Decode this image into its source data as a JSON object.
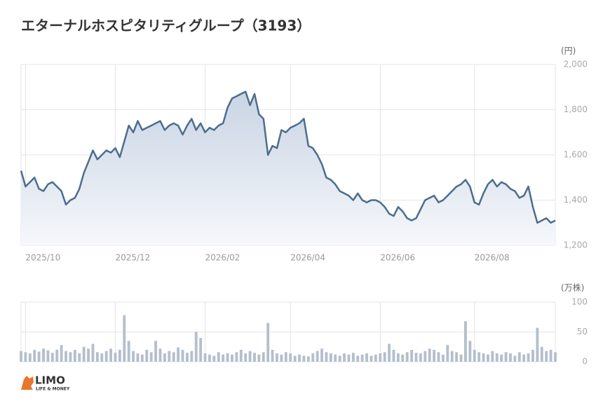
{
  "chart_data": [
    {
      "type": "line",
      "title": "エターナルホスピタリティグループ（3193）",
      "unit": "(円)",
      "color": "#4b6d8f",
      "area": true,
      "categories": [
        null,
        "2025/10",
        null,
        null,
        null,
        null,
        null,
        null,
        null,
        null,
        null,
        null,
        null,
        null,
        null,
        null,
        null,
        null,
        null,
        null,
        null,
        "2025/12",
        null,
        null,
        null,
        null,
        null,
        null,
        null,
        null,
        null,
        null,
        null,
        null,
        null,
        null,
        null,
        null,
        null,
        null,
        null,
        "2026/02",
        null,
        null,
        null,
        null,
        null,
        null,
        null,
        null,
        null,
        null,
        null,
        null,
        null,
        null,
        null,
        null,
        null,
        null,
        "2026/04",
        null,
        null,
        null,
        null,
        null,
        null,
        null,
        null,
        null,
        null,
        null,
        null,
        null,
        null,
        null,
        null,
        null,
        null,
        null,
        "2026/06",
        null,
        null,
        null,
        null,
        null,
        null,
        null,
        null,
        null,
        null,
        null,
        null,
        null,
        null,
        null,
        null,
        null,
        null,
        null,
        null,
        "2026/08",
        null,
        null,
        null,
        null,
        null,
        null,
        null,
        null,
        null,
        null,
        null,
        null,
        null,
        null,
        null,
        null,
        null,
        null
      ],
      "values": [
        1530,
        1460,
        1480,
        1500,
        1450,
        1440,
        1470,
        1480,
        1460,
        1440,
        1380,
        1400,
        1410,
        1450,
        1520,
        1570,
        1620,
        1580,
        1600,
        1620,
        1610,
        1630,
        1590,
        1660,
        1730,
        1700,
        1750,
        1710,
        1720,
        1730,
        1740,
        1750,
        1710,
        1730,
        1740,
        1730,
        1690,
        1730,
        1760,
        1710,
        1740,
        1700,
        1720,
        1710,
        1730,
        1740,
        1810,
        1850,
        1860,
        1870,
        1880,
        1820,
        1870,
        1780,
        1760,
        1600,
        1640,
        1630,
        1710,
        1700,
        1720,
        1730,
        1740,
        1760,
        1640,
        1630,
        1600,
        1560,
        1500,
        1490,
        1470,
        1440,
        1430,
        1420,
        1400,
        1430,
        1400,
        1390,
        1400,
        1400,
        1390,
        1370,
        1340,
        1330,
        1370,
        1350,
        1320,
        1310,
        1320,
        1360,
        1400,
        1410,
        1420,
        1390,
        1400,
        1420,
        1440,
        1460,
        1470,
        1490,
        1460,
        1390,
        1380,
        1430,
        1470,
        1490,
        1460,
        1480,
        1470,
        1450,
        1440,
        1410,
        1420,
        1460,
        1370,
        1300,
        1310,
        1320,
        1300,
        1310
      ],
      "ylim": [
        1200,
        2000
      ],
      "yticks": [
        {
          "value": 1200,
          "label": "1,200"
        },
        {
          "value": 1400,
          "label": "1,400"
        },
        {
          "value": 1600,
          "label": "1,600"
        },
        {
          "value": 1800,
          "label": "1,800"
        },
        {
          "value": 2000,
          "label": "2,000"
        }
      ],
      "grid": true
    },
    {
      "type": "bar",
      "unit": "(万株)",
      "color": "#b3bfcd",
      "values": [
        18,
        16,
        14,
        20,
        17,
        22,
        19,
        15,
        20,
        28,
        18,
        16,
        20,
        14,
        25,
        22,
        30,
        16,
        14,
        18,
        22,
        15,
        20,
        78,
        35,
        18,
        14,
        12,
        20,
        16,
        35,
        22,
        14,
        18,
        16,
        24,
        20,
        15,
        18,
        50,
        40,
        14,
        12,
        10,
        16,
        12,
        14,
        12,
        16,
        20,
        14,
        18,
        15,
        12,
        16,
        65,
        20,
        14,
        12,
        16,
        14,
        10,
        12,
        10,
        9,
        14,
        18,
        22,
        16,
        14,
        12,
        10,
        14,
        12,
        15,
        10,
        12,
        14,
        10,
        12,
        14,
        16,
        30,
        20,
        14,
        12,
        16,
        20,
        15,
        14,
        18,
        22,
        20,
        16,
        12,
        28,
        18,
        16,
        12,
        68,
        35,
        20,
        16,
        14,
        12,
        18,
        14,
        12,
        16,
        14,
        10,
        16,
        12,
        14,
        20,
        57,
        25,
        18,
        20,
        16
      ],
      "ylim": [
        0,
        100
      ],
      "yticks": [
        0,
        50,
        100
      ],
      "grid": true
    }
  ],
  "logo": {
    "name": "LIMO",
    "tagline": "LIFE & MONEY"
  }
}
